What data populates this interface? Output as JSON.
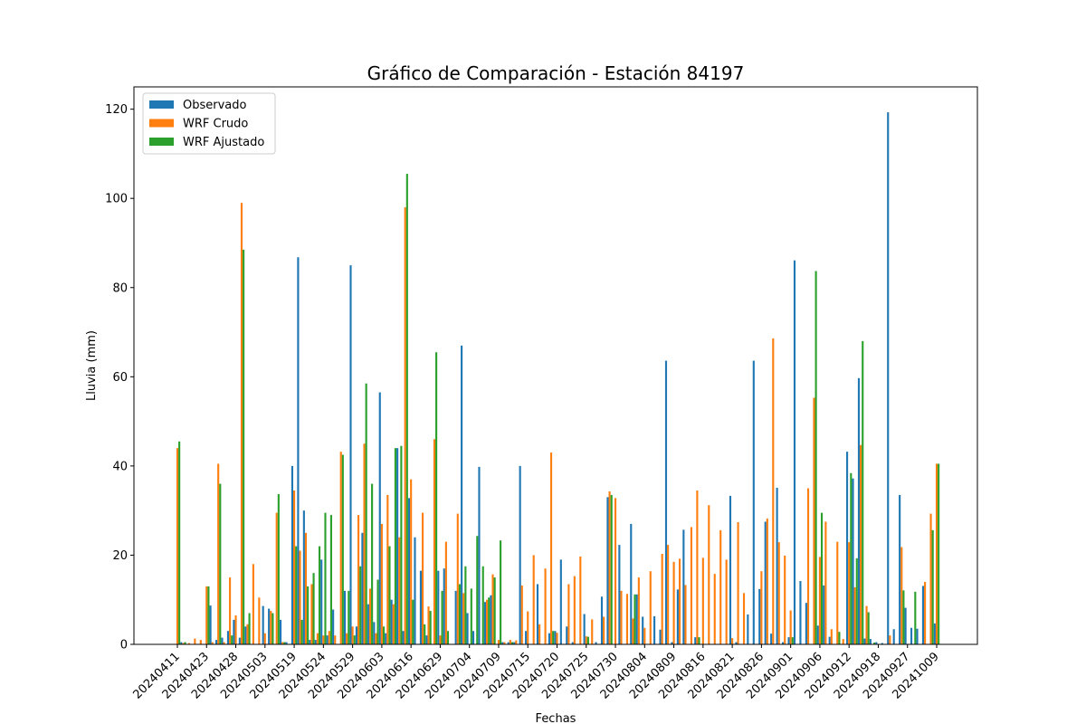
{
  "chart_data": {
    "type": "bar",
    "title": "Gráfico de Comparación - Estación 84197",
    "x_label": "Fechas",
    "y_label": "Lluvia (mm)",
    "categories": [
      "20240411",
      null,
      null,
      null,
      null,
      "20240423",
      null,
      null,
      null,
      null,
      "20240428",
      null,
      null,
      null,
      null,
      "20240503",
      null,
      null,
      null,
      null,
      "20240519",
      null,
      null,
      null,
      null,
      "20240524",
      null,
      null,
      null,
      null,
      "20240529",
      null,
      null,
      null,
      null,
      "20240603",
      null,
      null,
      null,
      null,
      "20240616",
      null,
      null,
      null,
      null,
      "20240629",
      null,
      null,
      null,
      null,
      "20240704",
      null,
      null,
      null,
      null,
      "20240709",
      null,
      null,
      null,
      null,
      "20240715",
      null,
      null,
      null,
      null,
      "20240720",
      null,
      null,
      null,
      null,
      "20240725",
      null,
      null,
      null,
      null,
      "20240730",
      null,
      null,
      null,
      null,
      "20240804",
      null,
      null,
      null,
      null,
      "20240809",
      null,
      null,
      null,
      null,
      "20240816",
      null,
      null,
      null,
      null,
      "20240821",
      null,
      null,
      null,
      null,
      "20240826",
      null,
      null,
      null,
      null,
      "20240901",
      null,
      null,
      null,
      null,
      "20240906",
      null,
      null,
      null,
      null,
      "20240912",
      null,
      null,
      null,
      null,
      "20240918",
      null,
      null,
      null,
      null,
      "20240927",
      null,
      null,
      null,
      null,
      "20241009"
    ],
    "series": [
      {
        "name": "Observado",
        "color": "#1f77b4",
        "values": [
          0,
          0.5,
          0,
          0,
          0,
          0,
          8.7,
          1,
          1.5,
          3,
          5.5,
          1.5,
          4,
          0,
          0,
          8.6,
          8,
          0,
          5.5,
          0.5,
          40,
          86.8,
          30,
          1,
          1,
          19,
          2,
          7.8,
          0,
          12,
          85,
          4,
          25,
          9,
          5,
          56.5,
          2.5,
          10,
          44,
          3,
          32.8,
          24,
          16.5,
          2,
          0,
          16.5,
          17,
          0,
          12,
          67,
          7,
          3,
          39.8,
          9.5,
          11,
          0,
          0.5,
          0.5,
          0.5,
          40,
          3,
          0,
          13.5,
          0,
          2.5,
          3,
          19,
          4,
          0.5,
          0,
          6.8,
          0,
          0.5,
          10.7,
          33,
          0,
          22.3,
          0,
          27,
          11.2,
          6.2,
          0,
          6.3,
          3.3,
          63.6,
          0.5,
          12.3,
          25.7,
          0,
          1.6,
          0,
          0,
          0,
          0,
          0,
          33.3,
          0.5,
          0,
          6.7,
          63.6,
          12.4,
          27.5,
          2.4,
          35.1,
          0.5,
          1.6,
          86.1,
          14.2,
          9.3,
          0,
          4.2,
          13.2,
          1.7,
          0,
          0,
          43.2,
          37.2,
          59.7,
          1.3,
          1.2,
          0.5,
          0.3,
          119.3,
          3.4,
          33.5,
          8.2,
          3.7,
          3.5,
          13.1,
          0,
          4.7
        ]
      },
      {
        "name": "WRF Crudo",
        "color": "#ff7f0e",
        "values": [
          44,
          0.3,
          0.3,
          1.3,
          1,
          13,
          0.5,
          40.5,
          0.5,
          15,
          6.5,
          99,
          4.5,
          18,
          10.5,
          2.5,
          7.5,
          29.5,
          0.5,
          0,
          34.5,
          21,
          25,
          13.5,
          2.5,
          2,
          3,
          2,
          43.2,
          2.5,
          4,
          29,
          45,
          12.5,
          2.5,
          27,
          33.5,
          9,
          24,
          98,
          37,
          0,
          29.5,
          8.5,
          46,
          2,
          23,
          0,
          29.3,
          11.5,
          0,
          0,
          0,
          10,
          15.7,
          1,
          0.5,
          1,
          0.9,
          13.2,
          7.4,
          20,
          4.5,
          17,
          43,
          2.6,
          0,
          13.5,
          15.3,
          19.7,
          1.8,
          5.6,
          0,
          6.2,
          34.3,
          32.8,
          12,
          11.3,
          5.8,
          15,
          3.7,
          16.4,
          0,
          20.3,
          22.3,
          18.5,
          19.2,
          13.3,
          26.3,
          34.5,
          19.4,
          31.2,
          15.8,
          25.6,
          19,
          1.4,
          27.4,
          11.5,
          0,
          0,
          16.4,
          28.2,
          68.6,
          22.9,
          19.9,
          7.6,
          0,
          0,
          35,
          55.3,
          19.6,
          27.5,
          3.4,
          23,
          1.2,
          22.9,
          12.8,
          44.7,
          8.6,
          0,
          0,
          0,
          2,
          0,
          21.8,
          0,
          0,
          0,
          14,
          29.3,
          40.5
        ]
      },
      {
        "name": "WRF Ajustado",
        "color": "#2ca02c",
        "values": [
          45.5,
          0.5,
          0,
          0,
          0,
          13,
          0,
          36,
          0,
          2,
          0,
          88.5,
          7,
          0,
          0,
          0,
          7,
          33.7,
          0.5,
          0,
          22,
          5.5,
          13,
          16,
          22,
          29.5,
          29,
          0,
          42.5,
          12,
          2,
          17.5,
          58.5,
          36,
          14.5,
          4,
          22,
          44,
          44.5,
          105.5,
          10,
          0,
          4.5,
          7.5,
          65.5,
          12,
          3,
          0,
          13.5,
          17.5,
          12.5,
          24.3,
          17.5,
          10.5,
          15,
          23.3,
          0,
          0.5,
          0,
          0,
          0,
          0,
          0,
          0,
          3,
          0,
          0,
          0,
          0,
          0,
          1.7,
          0,
          0,
          0,
          33.5,
          0,
          0,
          0,
          11.2,
          0,
          0,
          0,
          0,
          0,
          0,
          0,
          0,
          0,
          0,
          1.6,
          0,
          0,
          0,
          0,
          0,
          0,
          0,
          0,
          0,
          0,
          0,
          0,
          0,
          0,
          0,
          1.6,
          0,
          0,
          0,
          83.7,
          29.5,
          0,
          0,
          2.8,
          0,
          38.4,
          19.3,
          68,
          7.2,
          0.4,
          0,
          0,
          0,
          0,
          12.1,
          0,
          11.8,
          0,
          0,
          25.6,
          40.5
        ]
      }
    ],
    "ylim": [
      0,
      125
    ],
    "yticks": [
      0,
      20,
      40,
      60,
      80,
      100,
      120
    ],
    "legend": "upper-left"
  }
}
